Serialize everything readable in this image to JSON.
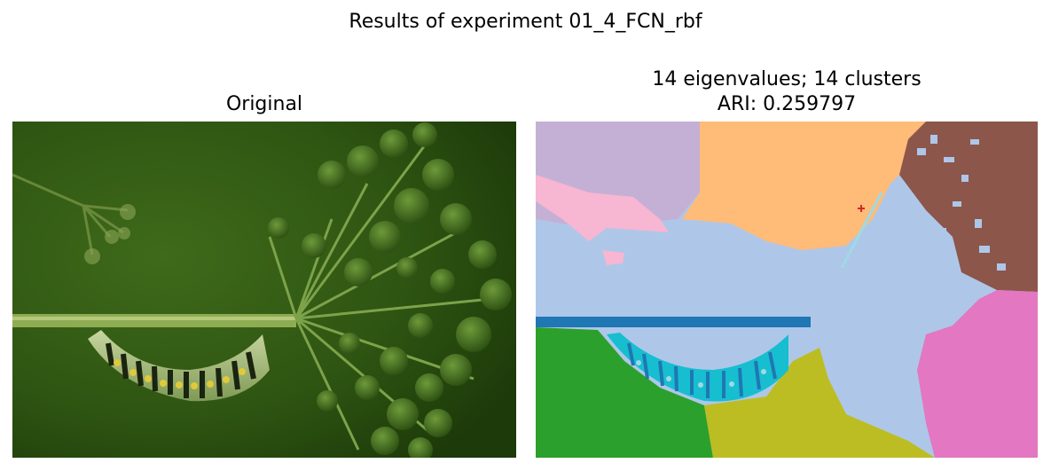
{
  "figure": {
    "suptitle": "Results of experiment 01_4_FCN_rbf"
  },
  "panels": [
    {
      "title": "Original",
      "content": "photograph"
    },
    {
      "title_line1": "14 eigenvalues; 14 clusters",
      "title_line2": "ARI: 0.259797",
      "content": "segmentation map"
    }
  ],
  "colors": {
    "background_photo": "#2f4f12",
    "cluster_lavender": "#c5b0d5",
    "cluster_orange": "#ffbb78",
    "cluster_brown": "#8c564b",
    "cluster_light_blue": "#aec7e8",
    "cluster_pink": "#f7b6d2",
    "cluster_magenta": "#e377c2",
    "cluster_green": "#2ca02c",
    "cluster_olive": "#bcbd22",
    "cluster_blue": "#1f77b4",
    "cluster_cyan": "#17becf",
    "cluster_teal_light": "#9edae5",
    "cluster_red": "#d62728"
  }
}
